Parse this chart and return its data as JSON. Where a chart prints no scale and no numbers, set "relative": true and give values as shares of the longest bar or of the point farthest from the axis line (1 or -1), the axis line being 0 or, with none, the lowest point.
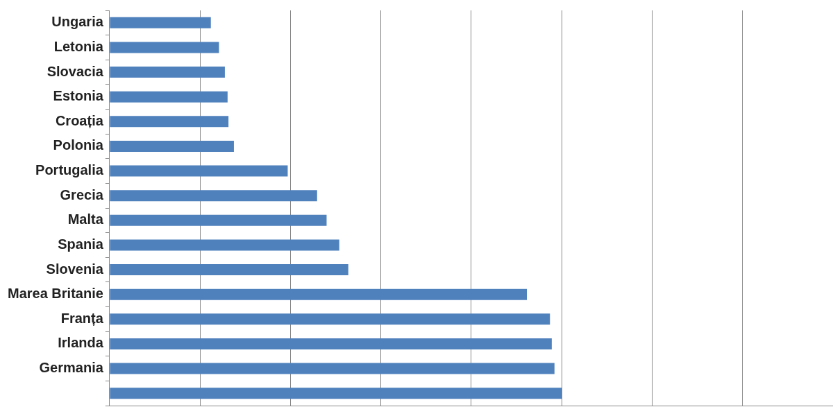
{
  "chart_data": {
    "type": "bar",
    "orientation": "horizontal",
    "relative": true,
    "grid": "x",
    "color": "#4f81bd",
    "categories": [
      "Ungaria",
      "Letonia",
      "Slovacia",
      "Estonia",
      "Croația",
      "Polonia",
      "Portugalia",
      "Grecia",
      "Malta",
      "Spania",
      "Slovenia",
      "Marea Britanie",
      "Franța",
      "Irlanda",
      "Germania",
      null
    ],
    "values": [
      0.224,
      0.242,
      0.255,
      0.261,
      0.263,
      0.275,
      0.394,
      0.459,
      0.48,
      0.508,
      0.528,
      0.923,
      0.974,
      0.978,
      0.984,
      1
    ]
  }
}
